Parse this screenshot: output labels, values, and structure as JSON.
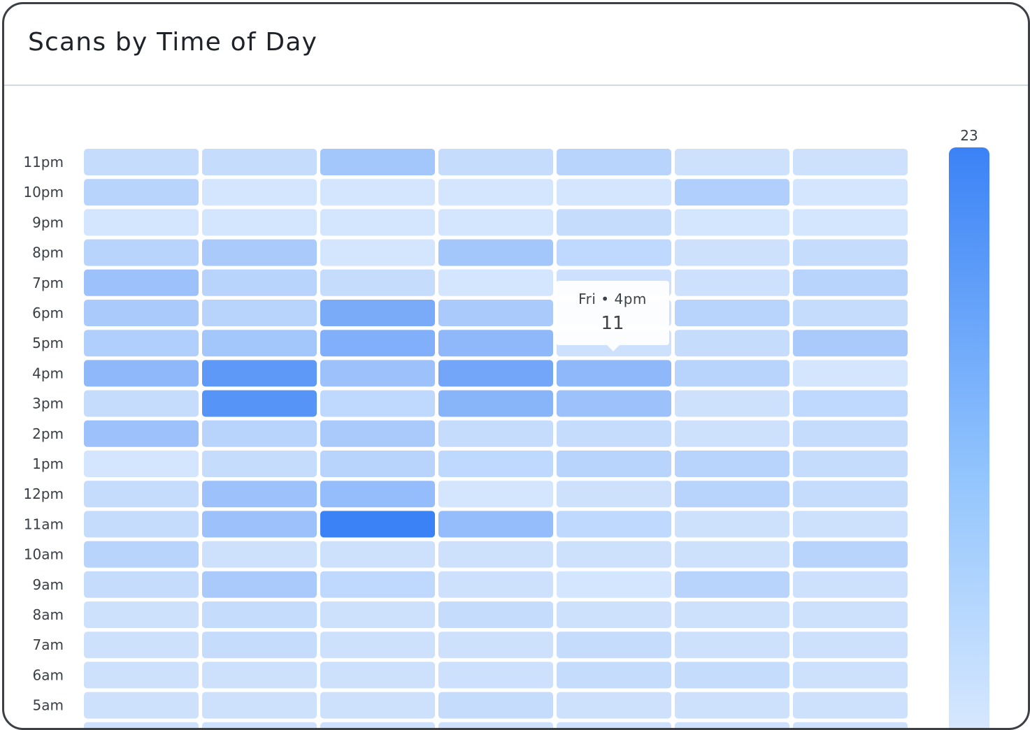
{
  "card": {
    "title": "Scans by Time of Day"
  },
  "tooltip": {
    "label": "Fri • 4pm",
    "value": "11"
  },
  "legend": {
    "max_label": "23",
    "colors": {
      "low": "#dbeafe",
      "high": "#3b82f6"
    }
  },
  "chart_data": {
    "type": "heatmap",
    "title": "Scans by Time of Day",
    "y_categories": [
      "11pm",
      "10pm",
      "9pm",
      "8pm",
      "7pm",
      "6pm",
      "5pm",
      "4pm",
      "3pm",
      "2pm",
      "1pm",
      "12pm",
      "11am",
      "10am",
      "9am",
      "8am",
      "7am",
      "6am",
      "5am"
    ],
    "x_columns": 7,
    "values": [
      [
        3,
        3,
        8,
        3,
        5,
        2,
        2
      ],
      [
        5,
        1,
        1,
        1,
        1,
        6,
        1
      ],
      [
        1,
        1,
        1,
        1,
        3,
        1,
        1
      ],
      [
        5,
        7,
        1,
        8,
        4,
        2,
        3
      ],
      [
        9,
        5,
        3,
        1,
        2,
        2,
        5
      ],
      [
        7,
        5,
        14,
        7,
        2,
        5,
        3
      ],
      [
        6,
        8,
        13,
        11,
        2,
        3,
        7
      ],
      [
        11,
        18,
        9,
        15,
        11,
        5,
        1
      ],
      [
        3,
        19,
        4,
        12,
        9,
        2,
        4
      ],
      [
        9,
        5,
        7,
        3,
        3,
        2,
        3
      ],
      [
        1,
        3,
        5,
        4,
        5,
        5,
        3
      ],
      [
        3,
        9,
        10,
        1,
        2,
        5,
        3
      ],
      [
        3,
        9,
        23,
        10,
        4,
        2,
        2
      ],
      [
        5,
        2,
        2,
        2,
        2,
        2,
        5
      ],
      [
        3,
        7,
        4,
        2,
        1,
        5,
        2
      ],
      [
        2,
        3,
        2,
        3,
        2,
        2,
        2
      ],
      [
        2,
        3,
        2,
        2,
        3,
        2,
        2
      ],
      [
        2,
        2,
        2,
        2,
        3,
        3,
        2
      ],
      [
        2,
        2,
        2,
        3,
        2,
        2,
        2
      ]
    ],
    "color_scale": {
      "min": 0,
      "max": 23,
      "low": "#dbeafe",
      "high": "#3b82f6"
    },
    "tooltip": {
      "label": "Fri • 4pm",
      "value": 11
    }
  }
}
